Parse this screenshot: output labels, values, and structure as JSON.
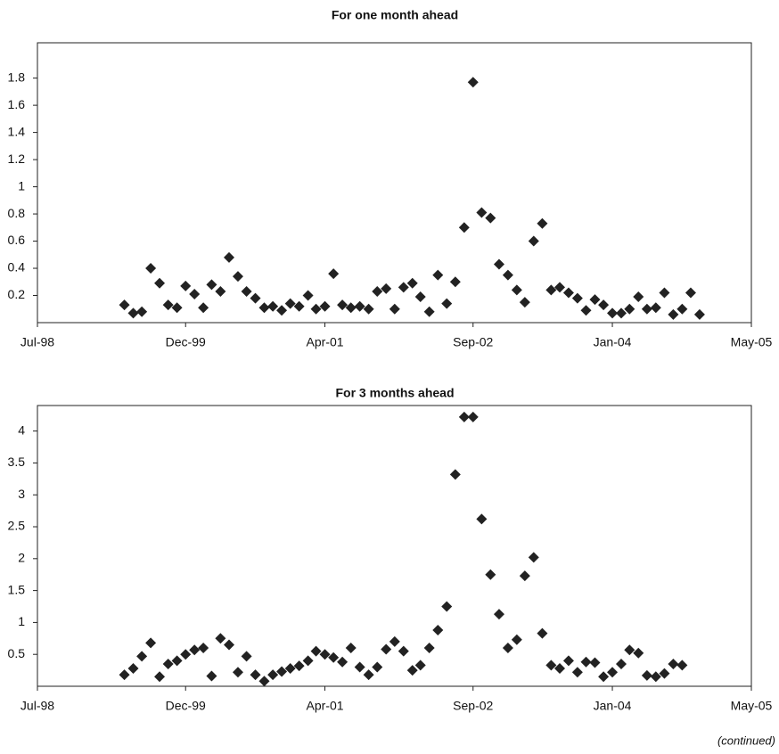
{
  "chart_data": [
    {
      "type": "scatter",
      "title": "For one month ahead",
      "color": "#222222",
      "x": [
        "May-99",
        "Jun-99",
        "Jul-99",
        "Aug-99",
        "Sep-99",
        "Oct-99",
        "Nov-99",
        "Dec-99",
        "Jan-00",
        "Feb-00",
        "Mar-00",
        "Apr-00",
        "May-00",
        "Jun-00",
        "Jul-00",
        "Aug-00",
        "Sep-00",
        "Oct-00",
        "Nov-00",
        "Dec-00",
        "Jan-01",
        "Feb-01",
        "Mar-01",
        "Apr-01",
        "May-01",
        "Jun-01",
        "Jul-01",
        "Aug-01",
        "Sep-01",
        "Oct-01",
        "Nov-01",
        "Dec-01",
        "Jan-02",
        "Feb-02",
        "Mar-02",
        "Apr-02",
        "May-02",
        "Jun-02",
        "Jul-02",
        "Aug-02",
        "Sep-02",
        "Oct-02",
        "Nov-02",
        "Dec-02",
        "Jan-03",
        "Feb-03",
        "Mar-03",
        "Apr-03",
        "May-03",
        "Jun-03",
        "Jul-03",
        "Aug-03",
        "Sep-03",
        "Oct-03",
        "Nov-03",
        "Dec-03",
        "Jan-04",
        "Feb-04",
        "Mar-04",
        "Apr-04",
        "May-04",
        "Jun-04",
        "Jul-04",
        "Aug-04",
        "Sep-04",
        "Oct-04",
        "Nov-04"
      ],
      "values": [
        0.13,
        0.07,
        0.08,
        0.4,
        0.29,
        0.13,
        0.11,
        0.27,
        0.21,
        0.11,
        0.28,
        0.23,
        0.48,
        0.34,
        0.23,
        0.18,
        0.11,
        0.12,
        0.09,
        0.14,
        0.12,
        0.2,
        0.1,
        0.12,
        0.36,
        0.13,
        0.11,
        0.12,
        0.1,
        0.23,
        0.25,
        0.1,
        0.26,
        0.29,
        0.19,
        0.08,
        0.35,
        0.14,
        0.3,
        0.7,
        1.77,
        0.81,
        0.77,
        0.43,
        0.35,
        0.24,
        0.15,
        0.6,
        0.73,
        0.24,
        0.26,
        0.22,
        0.18,
        0.09,
        0.17,
        0.13,
        0.07,
        0.07,
        0.1,
        0.19,
        0.1,
        0.11,
        0.22,
        0.06,
        0.1,
        0.22,
        0.06
      ],
      "xlim": [
        "Jul-98",
        "May-05"
      ],
      "xticks": [
        "Jul-98",
        "Dec-99",
        "Apr-01",
        "Sep-02",
        "Jan-04",
        "May-05"
      ],
      "ylim": [
        0,
        2.06
      ],
      "yticks": [
        0.2,
        0.4,
        0.6,
        0.8,
        1,
        1.2,
        1.4,
        1.6,
        1.8
      ]
    },
    {
      "type": "scatter",
      "title": "For 3 months ahead",
      "color": "#222222",
      "x": [
        "May-99",
        "Jun-99",
        "Jul-99",
        "Aug-99",
        "Sep-99",
        "Oct-99",
        "Nov-99",
        "Dec-99",
        "Jan-00",
        "Feb-00",
        "Mar-00",
        "Apr-00",
        "May-00",
        "Jun-00",
        "Jul-00",
        "Aug-00",
        "Sep-00",
        "Oct-00",
        "Nov-00",
        "Dec-00",
        "Jan-01",
        "Feb-01",
        "Mar-01",
        "Apr-01",
        "May-01",
        "Jun-01",
        "Jul-01",
        "Aug-01",
        "Sep-01",
        "Oct-01",
        "Nov-01",
        "Dec-01",
        "Jan-02",
        "Feb-02",
        "Mar-02",
        "Apr-02",
        "May-02",
        "Jun-02",
        "Jul-02",
        "Aug-02",
        "Sep-02",
        "Oct-02",
        "Nov-02",
        "Dec-02",
        "Jan-03",
        "Feb-03",
        "Mar-03",
        "Apr-03",
        "May-03",
        "Jun-03",
        "Jul-03",
        "Aug-03",
        "Sep-03",
        "Oct-03",
        "Nov-03",
        "Dec-03",
        "Jan-04",
        "Feb-04",
        "Mar-04",
        "Apr-04",
        "May-04",
        "Jun-04",
        "Jul-04",
        "Aug-04",
        "Sep-04"
      ],
      "values": [
        0.18,
        0.28,
        0.47,
        0.68,
        0.15,
        0.35,
        0.4,
        0.5,
        0.57,
        0.6,
        0.16,
        0.75,
        0.65,
        0.22,
        0.47,
        0.18,
        0.08,
        0.18,
        0.23,
        0.28,
        0.32,
        0.4,
        0.55,
        0.5,
        0.45,
        0.38,
        0.6,
        0.3,
        0.18,
        0.3,
        0.58,
        0.7,
        0.55,
        0.25,
        0.33,
        0.6,
        0.88,
        1.25,
        3.32,
        4.22,
        4.22,
        2.62,
        1.75,
        1.13,
        0.6,
        0.73,
        1.73,
        2.02,
        0.83,
        0.33,
        0.28,
        0.4,
        0.22,
        0.38,
        0.37,
        0.15,
        0.22,
        0.35,
        0.57,
        0.52,
        0.17,
        0.15,
        0.2,
        0.35,
        0.33
      ],
      "xlim": [
        "Jul-98",
        "May-05"
      ],
      "xticks": [
        "Jul-98",
        "Dec-99",
        "Apr-01",
        "Sep-02",
        "Jan-04",
        "May-05"
      ],
      "ylim": [
        0,
        4.4
      ],
      "yticks": [
        0.5,
        1,
        1.5,
        2,
        2.5,
        3,
        3.5,
        4
      ]
    }
  ],
  "footnote": "(continued)"
}
